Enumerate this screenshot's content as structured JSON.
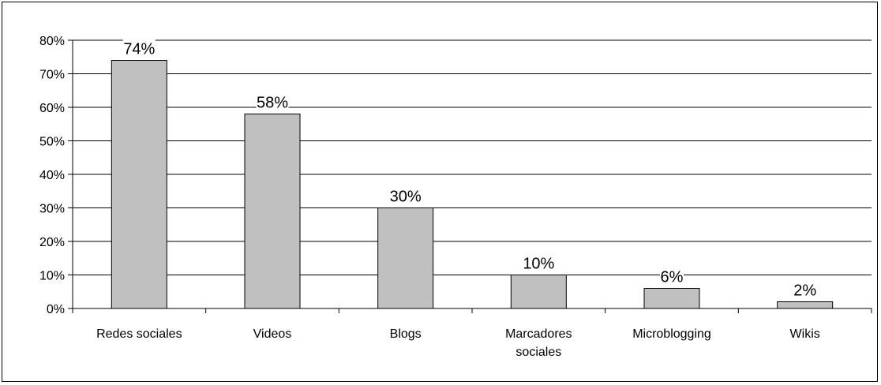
{
  "chart_data": {
    "type": "bar",
    "title": "",
    "xlabel": "",
    "ylabel": "",
    "ylim": [
      0,
      80
    ],
    "y_ticks": [
      "0%",
      "10%",
      "20%",
      "30%",
      "40%",
      "50%",
      "60%",
      "70%",
      "80%"
    ],
    "grid": true,
    "legend": "none",
    "categories": [
      "Redes sociales",
      "Videos",
      "Blogs",
      "Marcadores sociales",
      "Microblogging",
      "Wikis"
    ],
    "category_lines": [
      [
        "Redes sociales"
      ],
      [
        "Videos"
      ],
      [
        "Blogs"
      ],
      [
        "Marcadores",
        "sociales"
      ],
      [
        "Microblogging"
      ],
      [
        "Wikis"
      ]
    ],
    "values": [
      74,
      58,
      30,
      10,
      6,
      2
    ],
    "data_labels": [
      "74%",
      "58%",
      "30%",
      "10%",
      "6%",
      "2%"
    ],
    "bar_color": "#c0c0c0"
  }
}
